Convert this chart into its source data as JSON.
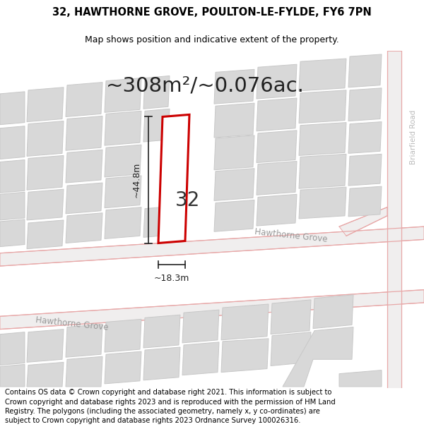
{
  "title": "32, HAWTHORNE GROVE, POULTON-LE-FYLDE, FY6 7PN",
  "subtitle": "Map shows position and indicative extent of the property.",
  "area_text": "~308m²/~0.076ac.",
  "label_32": "32",
  "dim_height": "~44.8m",
  "dim_width": "~18.3m",
  "road_label_upper": "Hawthorne Grove",
  "road_label_lower": "Hawthorne Grove",
  "road_label_right": "Briarfield Road",
  "footer": "Contains OS data © Crown copyright and database right 2021. This information is subject to Crown copyright and database rights 2023 and is reproduced with the permission of HM Land Registry. The polygons (including the associated geometry, namely x, y co-ordinates) are subject to Crown copyright and database rights 2023 Ordnance Survey 100026316.",
  "bg_color": "#ffffff",
  "map_bg": "#f7f7f5",
  "road_line_color": "#e8a8a8",
  "road_fill_color": "#f0eeee",
  "building_fill": "#d8d8d8",
  "building_edge": "#c8c8c8",
  "highlight_fill": "#ffffff",
  "highlight_edge": "#cc0000",
  "dim_color": "#222222",
  "title_fontsize": 10.5,
  "subtitle_fontsize": 9,
  "area_fontsize": 21,
  "label_fontsize": 20,
  "road_label_fontsize": 8.5,
  "footer_fontsize": 7.2
}
